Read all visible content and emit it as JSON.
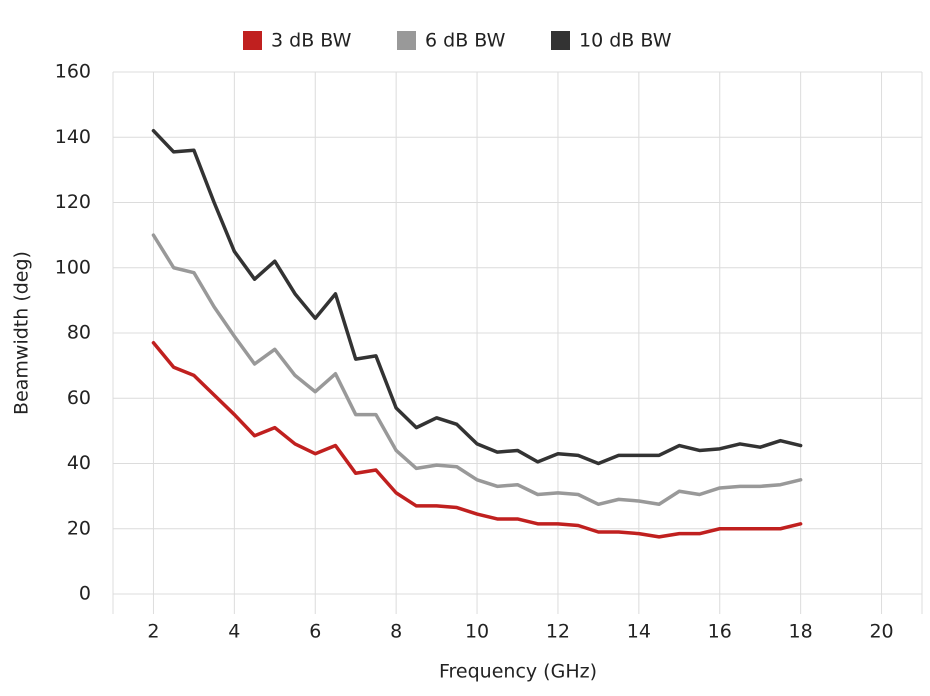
{
  "chart_data": {
    "type": "line",
    "x_label": "Frequency (GHz)",
    "y_label": "Beamwidth (deg)",
    "x": [
      2,
      2.5,
      3,
      3.5,
      4,
      4.5,
      5,
      5.5,
      6,
      6.5,
      7,
      7.5,
      8,
      8.5,
      9,
      9.5,
      10,
      10.5,
      11,
      11.5,
      12,
      12.5,
      13,
      13.5,
      14,
      14.5,
      15,
      15.5,
      16,
      16.5,
      17,
      17.5,
      18
    ],
    "series": [
      {
        "name": "3 dB BW",
        "color": "#c0201f",
        "values": [
          77,
          69.5,
          67,
          61,
          55,
          48.5,
          51,
          46,
          43,
          45.5,
          37,
          38,
          31,
          27,
          27,
          26.5,
          24.5,
          23,
          23,
          21.5,
          21.5,
          21,
          19,
          19,
          18.5,
          17.5,
          18.5,
          18.5,
          20,
          20,
          20,
          20,
          21.5
        ]
      },
      {
        "name": "6 dB BW",
        "color": "#999999",
        "values": [
          110,
          100,
          98.5,
          88,
          79,
          70.5,
          75,
          67,
          62,
          67.5,
          55,
          55,
          44,
          38.5,
          39.5,
          39,
          35,
          33,
          33.5,
          30.5,
          31,
          30.5,
          27.5,
          29,
          28.5,
          27.5,
          31.5,
          30.5,
          32.5,
          33,
          33,
          33.5,
          35
        ]
      },
      {
        "name": "10 dB BW",
        "color": "#333333",
        "values": [
          142,
          135.5,
          136,
          120,
          105,
          96.5,
          102,
          92,
          84.5,
          92,
          72,
          73,
          57,
          51,
          54,
          52,
          46,
          43.5,
          44,
          40.5,
          43,
          42.5,
          40,
          42.5,
          42.5,
          42.5,
          45.5,
          44,
          44.5,
          46,
          45,
          47,
          45.5
        ]
      }
    ],
    "xlim": [
      1,
      21
    ],
    "ylim": [
      0,
      160
    ],
    "xticks": [
      2,
      4,
      6,
      8,
      10,
      12,
      14,
      16,
      18,
      20
    ],
    "yticks": [
      0,
      20,
      40,
      60,
      80,
      100,
      120,
      140,
      160
    ],
    "grid": true,
    "legend": "top"
  }
}
